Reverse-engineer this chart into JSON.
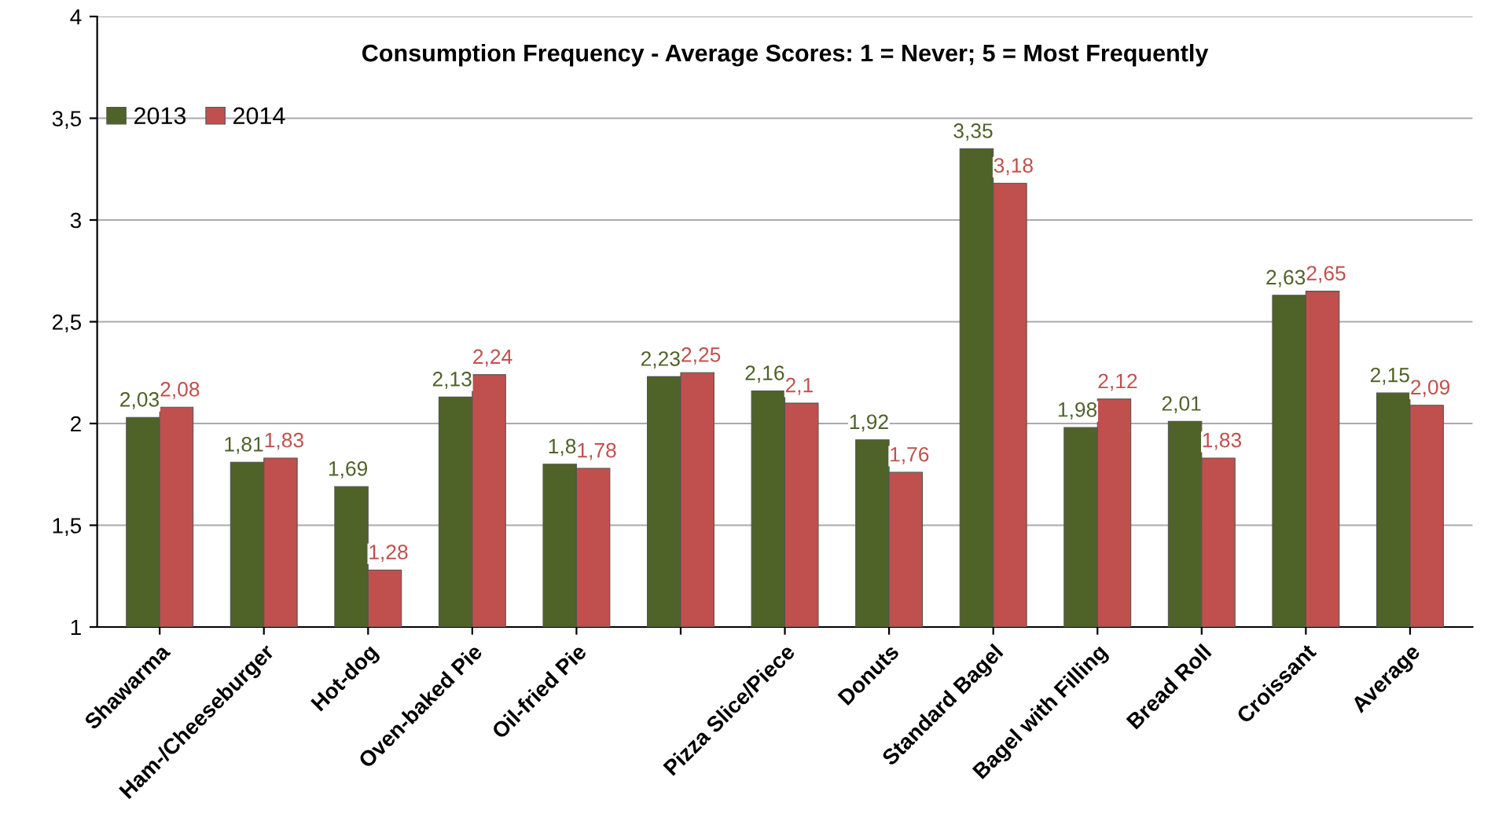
{
  "chart_data": {
    "type": "bar",
    "title": "Consumption Frequency - Average Scores: 1 = Never; 5 = Most Frequently",
    "categories": [
      "Shawarma",
      "Ham-/Cheeseburger",
      "Hot-dog",
      "Oven-baked Pie",
      "Oil-fried Pie",
      null,
      "Pizza Slice/Piece",
      "Donuts",
      "Standard Bagel",
      "Bagel with Filling",
      "Bread Roll",
      "Croissant",
      "Average"
    ],
    "series": [
      {
        "name": "2013",
        "color": "#4f6228",
        "values": [
          2.03,
          1.81,
          1.69,
          2.13,
          1.8,
          2.23,
          2.16,
          1.92,
          3.35,
          1.98,
          2.01,
          2.63,
          2.15
        ],
        "value_labels": [
          "2,03",
          "1,81",
          "1,69",
          "2,13",
          "1,8",
          "2,23",
          "2,16",
          "1,92",
          "3,35",
          "1,98",
          "2,01",
          "2,63",
          "2,15"
        ]
      },
      {
        "name": "2014",
        "color": "#c0504d",
        "values": [
          2.08,
          1.83,
          1.28,
          2.24,
          1.78,
          2.25,
          2.1,
          1.76,
          3.18,
          2.12,
          1.83,
          2.65,
          2.09
        ],
        "value_labels": [
          "2,08",
          "1,83",
          "1,28",
          "2,24",
          "1,78",
          "2,25",
          "2,1",
          "1,76",
          "3,18",
          "2,12",
          "1,83",
          "2,65",
          "2,09"
        ]
      }
    ],
    "ylim": [
      1,
      4
    ],
    "yticks": [
      1,
      {
        "value": 1.5,
        "label": "1,5"
      },
      2,
      {
        "value": 2.5,
        "label": "2,5"
      },
      3,
      {
        "value": 3.5,
        "label": "3,5"
      },
      4
    ],
    "grid": "y",
    "legend": "top left"
  }
}
